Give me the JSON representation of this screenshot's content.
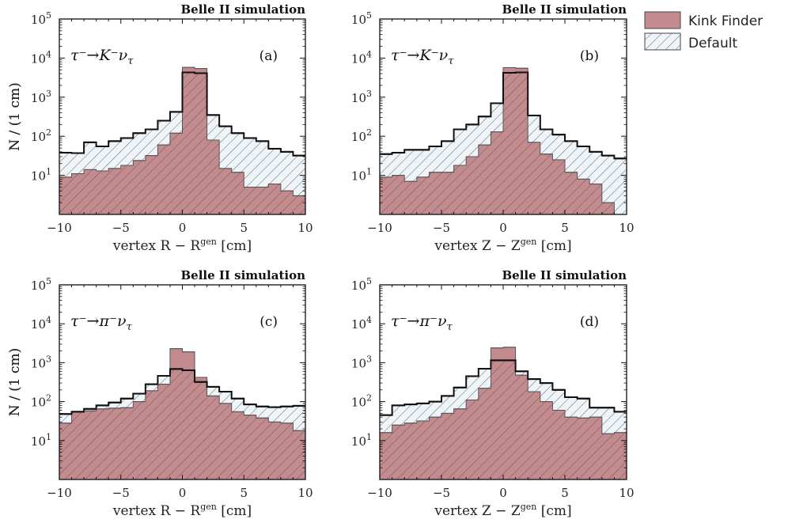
{
  "legend": {
    "kink_label": "Kink Finder",
    "default_label": "Default"
  },
  "colors": {
    "kink_fill": "#c48b8f",
    "kink_edge": "#555555",
    "default_fill": "#eef4f8",
    "default_edge": "#111111",
    "hatch": "#555555"
  },
  "chart_data": [
    {
      "type": "histogram",
      "panel_tag": "(a)",
      "banner": "Belle II simulation",
      "decay": "τ⁻→K⁻ν",
      "decay_sub": "τ",
      "xlabel": "vertex R − R",
      "xlabel_sup": "gen",
      "xlabel_unit": "[cm]",
      "ylabel": "N / (1 cm)",
      "xlim": [
        -10,
        10
      ],
      "ylim": [
        1,
        100000
      ],
      "yscale": "log",
      "x_ticks": [
        "−10",
        "−5",
        "0",
        "5",
        "10"
      ],
      "y_ticks": [
        "10",
        "10",
        "10",
        "10",
        "10"
      ],
      "y_tick_exps": [
        "1",
        "2",
        "3",
        "4",
        "5"
      ],
      "bin_edges": [
        -10,
        -9,
        -8,
        -7,
        -6,
        -5,
        -4,
        -3,
        -2,
        -1,
        0,
        1,
        2,
        3,
        4,
        5,
        6,
        7,
        8,
        9,
        10
      ],
      "series": [
        {
          "name": "Kink Finder",
          "values": [
            9,
            11,
            14,
            13,
            15,
            18,
            24,
            32,
            60,
            120,
            5800,
            5400,
            80,
            15,
            12,
            5,
            5,
            6,
            4,
            3
          ]
        },
        {
          "name": "Default",
          "values": [
            38,
            37,
            70,
            55,
            75,
            90,
            120,
            150,
            250,
            420,
            4300,
            4100,
            350,
            180,
            120,
            90,
            75,
            48,
            40,
            32
          ]
        }
      ]
    },
    {
      "type": "histogram",
      "panel_tag": "(b)",
      "banner": "Belle II simulation",
      "decay": "τ⁻→K⁻ν",
      "decay_sub": "τ",
      "xlabel": "vertex Z − Z",
      "xlabel_sup": "gen",
      "xlabel_unit": "[cm]",
      "ylabel": "N / (1 cm)",
      "xlim": [
        -10,
        10
      ],
      "ylim": [
        1,
        100000
      ],
      "yscale": "log",
      "x_ticks": [
        "−10",
        "−5",
        "0",
        "5",
        "10"
      ],
      "y_ticks": [
        "10",
        "10",
        "10",
        "10",
        "10"
      ],
      "y_tick_exps": [
        "1",
        "2",
        "3",
        "4",
        "5"
      ],
      "bin_edges": [
        -10,
        -9,
        -8,
        -7,
        -6,
        -5,
        -4,
        -3,
        -2,
        -1,
        0,
        1,
        2,
        3,
        4,
        5,
        6,
        7,
        8,
        9,
        10
      ],
      "series": [
        {
          "name": "Kink Finder",
          "values": [
            9,
            10,
            7,
            9,
            12,
            12,
            18,
            30,
            60,
            130,
            5700,
            5500,
            70,
            35,
            25,
            12,
            8,
            6,
            2,
            1
          ]
        },
        {
          "name": "Default",
          "values": [
            35,
            38,
            45,
            45,
            55,
            75,
            150,
            200,
            320,
            700,
            4200,
            4300,
            340,
            150,
            110,
            75,
            55,
            40,
            32,
            27
          ]
        }
      ]
    },
    {
      "type": "histogram",
      "panel_tag": "(c)",
      "banner": "Belle II simulation",
      "decay": "τ⁻→π⁻ν",
      "decay_sub": "τ",
      "xlabel": "vertex R − R",
      "xlabel_sup": "gen",
      "xlabel_unit": "[cm]",
      "ylabel": "N / (1 cm)",
      "xlim": [
        -10,
        10
      ],
      "ylim": [
        1,
        100000
      ],
      "yscale": "log",
      "x_ticks": [
        "−10",
        "−5",
        "0",
        "5",
        "10"
      ],
      "y_ticks": [
        "10",
        "10",
        "10",
        "10",
        "10"
      ],
      "y_tick_exps": [
        "1",
        "2",
        "3",
        "4",
        "5"
      ],
      "bin_edges": [
        -10,
        -9,
        -8,
        -7,
        -6,
        -5,
        -4,
        -3,
        -2,
        -1,
        0,
        1,
        2,
        3,
        4,
        5,
        6,
        7,
        8,
        9,
        10
      ],
      "series": [
        {
          "name": "Kink Finder",
          "values": [
            28,
            55,
            58,
            65,
            68,
            70,
            100,
            190,
            280,
            2300,
            1900,
            420,
            140,
            90,
            55,
            45,
            38,
            30,
            28,
            18
          ]
        },
        {
          "name": "Default",
          "values": [
            48,
            55,
            65,
            80,
            95,
            120,
            160,
            280,
            460,
            690,
            640,
            320,
            240,
            180,
            120,
            85,
            75,
            72,
            75,
            78
          ]
        }
      ]
    },
    {
      "type": "histogram",
      "panel_tag": "(d)",
      "banner": "Belle II simulation",
      "decay": "τ⁻→π⁻ν",
      "decay_sub": "τ",
      "xlabel": "vertex Z − Z",
      "xlabel_sup": "gen",
      "xlabel_unit": "[cm]",
      "ylabel": "N / (1 cm)",
      "xlim": [
        -10,
        10
      ],
      "ylim": [
        1,
        100000
      ],
      "yscale": "log",
      "x_ticks": [
        "−10",
        "−5",
        "0",
        "5",
        "10"
      ],
      "y_ticks": [
        "10",
        "10",
        "10",
        "10",
        "10"
      ],
      "y_tick_exps": [
        "1",
        "2",
        "3",
        "4",
        "5"
      ],
      "bin_edges": [
        -10,
        -9,
        -8,
        -7,
        -6,
        -5,
        -4,
        -3,
        -2,
        -1,
        0,
        1,
        2,
        3,
        4,
        5,
        6,
        7,
        8,
        9,
        10
      ],
      "series": [
        {
          "name": "Kink Finder",
          "values": [
            16,
            25,
            28,
            32,
            40,
            50,
            65,
            110,
            220,
            2400,
            2500,
            480,
            180,
            100,
            60,
            40,
            38,
            40,
            15,
            16
          ]
        },
        {
          "name": "Default",
          "values": [
            45,
            80,
            85,
            90,
            100,
            140,
            230,
            450,
            700,
            1150,
            1150,
            600,
            380,
            300,
            200,
            130,
            120,
            70,
            70,
            55
          ]
        }
      ]
    }
  ]
}
